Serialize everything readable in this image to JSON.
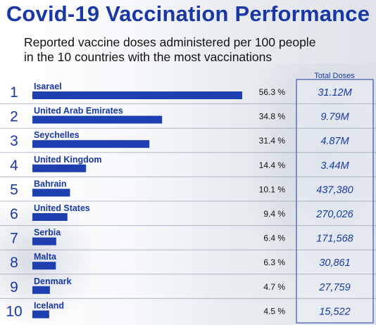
{
  "title": "Covid-19 Vaccination Performance",
  "subtitle_line1": "Reported vaccine doses administered per 100 people",
  "subtitle_line2": "in the 10 countries with the most vaccinations",
  "total_doses_header": "Total Doses",
  "colors": {
    "accent": "#1a37a3",
    "bar": "#1e3fb0",
    "rank": "#1a37a3"
  },
  "chart_data": {
    "type": "bar",
    "orientation": "horizontal",
    "title": "Covid-19 Vaccination Performance",
    "subtitle": "Reported vaccine doses administered per 100 people in the 10 countries with the most vaccinations",
    "categories": [
      "Isarael",
      "United Arab Emirates",
      "Seychelles",
      "United Kingdom",
      "Bahrain",
      "United States",
      "Serbia",
      "Malta",
      "Denmark",
      "Iceland"
    ],
    "ranks": [
      "1",
      "2",
      "3",
      "4",
      "5",
      "6",
      "7",
      "8",
      "9",
      "10"
    ],
    "values": [
      56.3,
      34.8,
      31.4,
      14.4,
      10.1,
      9.4,
      6.4,
      6.3,
      4.7,
      4.5
    ],
    "value_labels": [
      "56.3 %",
      "34.8 %",
      "31.4 %",
      "14.4 %",
      "10.1 %",
      "9.4 %",
      "6.4 %",
      "6.3 %",
      "4.7 %",
      "4.5 %"
    ],
    "total_doses": [
      "31.12M",
      "9.79M",
      "4.87M",
      "3.44M",
      "437,380",
      "270,026",
      "171,568",
      "30,861",
      "27,759",
      "15,522"
    ],
    "xlim": [
      0,
      56.3
    ],
    "grid": false,
    "legend": "none"
  }
}
